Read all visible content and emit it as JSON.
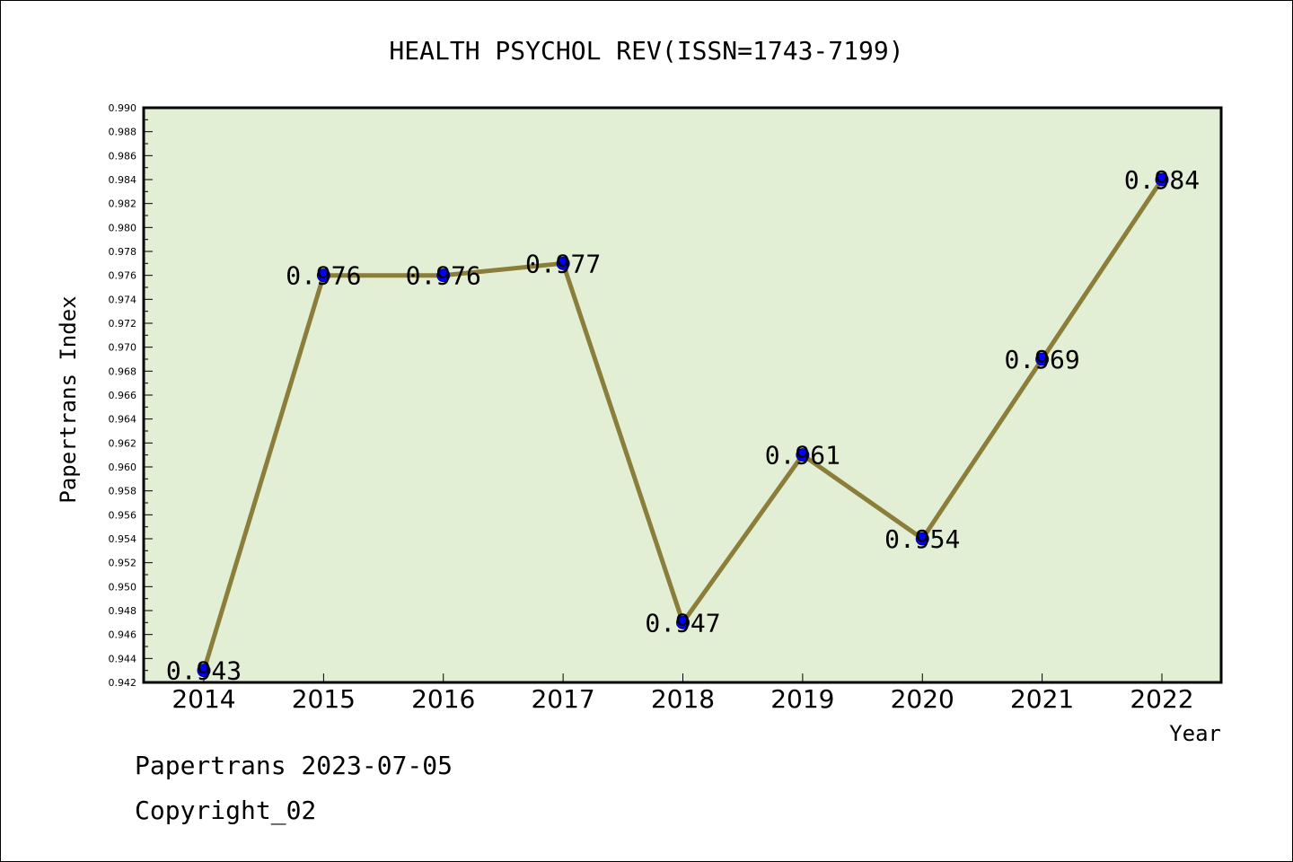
{
  "chart_data": {
    "type": "line",
    "title": "HEALTH PSYCHOL REV(ISSN=1743-7199)",
    "xlabel": "Year",
    "ylabel": "Papertrans Index",
    "categories": [
      "2014",
      "2015",
      "2016",
      "2017",
      "2018",
      "2019",
      "2020",
      "2021",
      "2022"
    ],
    "values": [
      0.943,
      0.976,
      0.976,
      0.977,
      0.947,
      0.961,
      0.954,
      0.969,
      0.984
    ],
    "data_labels": [
      "0.943",
      "0.976",
      "0.976",
      "0.977",
      "0.947",
      "0.961",
      "0.954",
      "0.969",
      "0.984"
    ],
    "ylim": [
      0.942,
      0.99
    ],
    "yticks": [
      "0.942",
      "0.944",
      "0.946",
      "0.948",
      "0.950",
      "0.952",
      "0.954",
      "0.956",
      "0.958",
      "0.960",
      "0.962",
      "0.964",
      "0.966",
      "0.968",
      "0.970",
      "0.972",
      "0.974",
      "0.976",
      "0.978",
      "0.980",
      "0.982",
      "0.984",
      "0.986",
      "0.988",
      "0.990"
    ],
    "grid": false,
    "legend": "none",
    "colors": {
      "plot_background": "#e2efd5",
      "line": "#8b7d3a",
      "marker": "#0000ff",
      "axes": "#000000"
    }
  },
  "footer": {
    "date_text": "Papertrans 2023-07-05",
    "copyright_text": "Copyright_02"
  }
}
